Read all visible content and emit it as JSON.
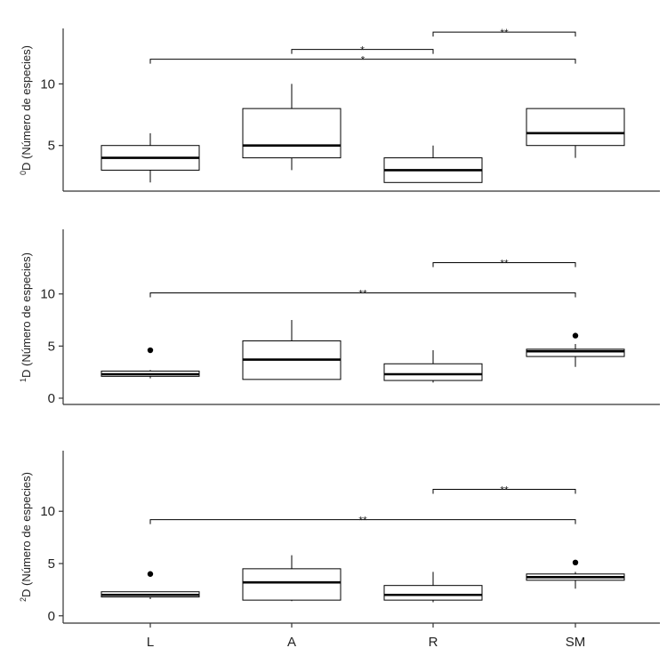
{
  "chart_data": [
    {
      "type": "boxplot",
      "ylabel": "⁰D (Número de especies)",
      "ylabel_super": "0",
      "ylabel_main": "D (Número de especies)",
      "ylim": [
        1.3,
        14.5
      ],
      "yticks": [
        5,
        10
      ],
      "categories": [
        "L",
        "A",
        "R",
        "SM"
      ],
      "boxes": [
        {
          "category": "L",
          "min": 2,
          "q1": 3,
          "median": 4,
          "q3": 5,
          "max": 6,
          "outliers": []
        },
        {
          "category": "A",
          "min": 3,
          "q1": 4,
          "median": 5,
          "q3": 8,
          "max": 10,
          "outliers": []
        },
        {
          "category": "R",
          "min": 2,
          "q1": 2,
          "median": 3,
          "q3": 4,
          "max": 5,
          "outliers": []
        },
        {
          "category": "SM",
          "min": 4,
          "q1": 5,
          "median": 6,
          "q3": 8,
          "max": 8,
          "outliers": []
        }
      ],
      "significance": [
        {
          "from": "R",
          "to": "SM",
          "y": 14.2,
          "label": "**"
        },
        {
          "from": "A",
          "to": "R",
          "y": 12.8,
          "label": "*"
        },
        {
          "from": "L",
          "to": "SM",
          "y": 12.0,
          "label": "*"
        }
      ]
    },
    {
      "type": "boxplot",
      "ylabel": "¹D (Número de especies)",
      "ylabel_super": "1",
      "ylabel_main": "D (Número de especies)",
      "ylim": [
        -0.6,
        16.2
      ],
      "yticks": [
        0,
        5,
        10
      ],
      "categories": [
        "L",
        "A",
        "R",
        "SM"
      ],
      "boxes": [
        {
          "category": "L",
          "min": 1.9,
          "q1": 2.1,
          "median": 2.3,
          "q3": 2.6,
          "max": 2.7,
          "outliers": [
            4.6
          ]
        },
        {
          "category": "A",
          "min": 1.8,
          "q1": 1.8,
          "median": 3.7,
          "q3": 5.5,
          "max": 7.5,
          "outliers": []
        },
        {
          "category": "R",
          "min": 1.5,
          "q1": 1.7,
          "median": 2.3,
          "q3": 3.3,
          "max": 4.6,
          "outliers": []
        },
        {
          "category": "SM",
          "min": 3.0,
          "q1": 4.0,
          "median": 4.5,
          "q3": 4.7,
          "max": 5.2,
          "outliers": [
            6.0
          ]
        }
      ],
      "significance": [
        {
          "from": "R",
          "to": "SM",
          "y": 13.0,
          "label": "**"
        },
        {
          "from": "L",
          "to": "SM",
          "y": 10.1,
          "label": "**"
        }
      ]
    },
    {
      "type": "boxplot",
      "ylabel": "²D (Número de especies)",
      "ylabel_super": "2",
      "ylabel_main": "D (Número de especies)",
      "ylim": [
        -0.7,
        15.8
      ],
      "yticks": [
        0,
        5,
        10
      ],
      "categories": [
        "L",
        "A",
        "R",
        "SM"
      ],
      "boxes": [
        {
          "category": "L",
          "min": 1.6,
          "q1": 1.8,
          "median": 2.0,
          "q3": 2.3,
          "max": 2.3,
          "outliers": [
            4.0
          ]
        },
        {
          "category": "A",
          "min": 1.4,
          "q1": 1.5,
          "median": 3.2,
          "q3": 4.5,
          "max": 5.8,
          "outliers": []
        },
        {
          "category": "R",
          "min": 1.3,
          "q1": 1.5,
          "median": 2.0,
          "q3": 2.9,
          "max": 4.2,
          "outliers": []
        },
        {
          "category": "SM",
          "min": 2.6,
          "q1": 3.4,
          "median": 3.7,
          "q3": 4.0,
          "max": 4.2,
          "outliers": [
            5.1
          ]
        }
      ],
      "significance": [
        {
          "from": "R",
          "to": "SM",
          "y": 12.1,
          "label": "**"
        },
        {
          "from": "L",
          "to": "SM",
          "y": 9.2,
          "label": "**"
        }
      ]
    }
  ],
  "colors": {
    "box_fill": "#ffffff",
    "line": "#000000",
    "axis": "#333333",
    "outlier": "#000000"
  }
}
